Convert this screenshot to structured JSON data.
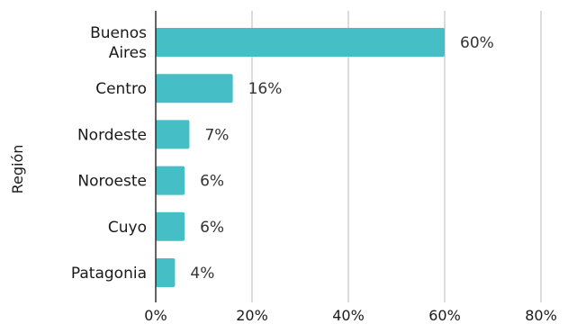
{
  "chart_data": {
    "type": "bar",
    "orientation": "horizontal",
    "ylabel": "Región",
    "xlabel": "",
    "categories": [
      [
        "Buenos",
        "Aires"
      ],
      [
        "Centro"
      ],
      [
        "Nordeste"
      ],
      [
        "Noroeste"
      ],
      [
        "Cuyo"
      ],
      [
        "Patagonia"
      ]
    ],
    "values": [
      60,
      16,
      7,
      6,
      6,
      4
    ],
    "data_labels": [
      "60%",
      "16%",
      "7%",
      "6%",
      "6%",
      "4%"
    ],
    "xlim": [
      0,
      80
    ],
    "xticks": [
      0,
      20,
      40,
      60,
      80
    ],
    "xtick_labels": [
      "0%",
      "20%",
      "40%",
      "60%",
      "80%"
    ],
    "grid": "vertical",
    "bar_color": "#46BEC6"
  }
}
